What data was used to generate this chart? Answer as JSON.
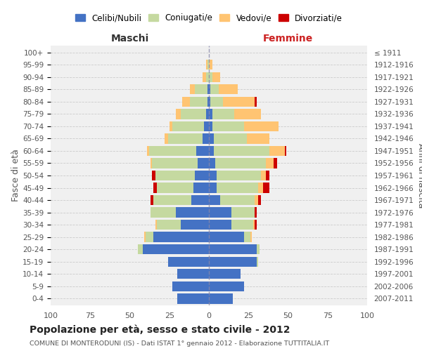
{
  "age_groups": [
    "0-4",
    "5-9",
    "10-14",
    "15-19",
    "20-24",
    "25-29",
    "30-34",
    "35-39",
    "40-44",
    "45-49",
    "50-54",
    "55-59",
    "60-64",
    "65-69",
    "70-74",
    "75-79",
    "80-84",
    "85-89",
    "90-94",
    "95-99",
    "100+"
  ],
  "birth_years": [
    "2007-2011",
    "2002-2006",
    "1997-2001",
    "1992-1996",
    "1987-1991",
    "1982-1986",
    "1977-1981",
    "1972-1976",
    "1967-1971",
    "1962-1966",
    "1957-1961",
    "1952-1956",
    "1947-1951",
    "1942-1946",
    "1937-1941",
    "1932-1936",
    "1927-1931",
    "1922-1926",
    "1917-1921",
    "1912-1916",
    "≤ 1911"
  ],
  "maschi": {
    "celibi": [
      20,
      23,
      20,
      26,
      42,
      35,
      18,
      21,
      11,
      10,
      9,
      7,
      8,
      4,
      3,
      2,
      1,
      1,
      0,
      0,
      0
    ],
    "coniugati": [
      0,
      0,
      0,
      0,
      3,
      5,
      15,
      16,
      24,
      23,
      25,
      29,
      30,
      22,
      20,
      16,
      11,
      8,
      2,
      1,
      0
    ],
    "vedovi": [
      0,
      0,
      0,
      0,
      0,
      1,
      1,
      0,
      0,
      0,
      0,
      1,
      1,
      2,
      2,
      3,
      5,
      3,
      2,
      1,
      0
    ],
    "divorziati": [
      0,
      0,
      0,
      0,
      0,
      0,
      0,
      0,
      2,
      2,
      2,
      0,
      0,
      0,
      0,
      0,
      0,
      0,
      0,
      0,
      0
    ]
  },
  "femmine": {
    "nubili": [
      15,
      22,
      20,
      30,
      30,
      22,
      14,
      14,
      7,
      5,
      5,
      4,
      3,
      3,
      2,
      2,
      1,
      1,
      0,
      0,
      0
    ],
    "coniugate": [
      0,
      0,
      0,
      1,
      2,
      4,
      14,
      15,
      22,
      26,
      28,
      32,
      35,
      21,
      20,
      14,
      8,
      5,
      2,
      0,
      0
    ],
    "vedove": [
      0,
      0,
      0,
      0,
      0,
      1,
      1,
      0,
      2,
      3,
      3,
      5,
      10,
      14,
      22,
      17,
      20,
      12,
      5,
      2,
      0
    ],
    "divorziate": [
      0,
      0,
      0,
      0,
      0,
      0,
      1,
      1,
      2,
      4,
      2,
      2,
      1,
      0,
      0,
      0,
      1,
      0,
      0,
      0,
      0
    ]
  },
  "colors": {
    "celibi": "#4472c4",
    "coniugati": "#c5d9a0",
    "vedovi": "#ffc472",
    "divorziati": "#cc0000"
  },
  "xlim": 100,
  "title": "Popolazione per età, sesso e stato civile - 2012",
  "subtitle": "COMUNE DI MONTERODUNI (IS) - Dati ISTAT 1° gennaio 2012 - Elaborazione TUTTITALIA.IT",
  "ylabel_left": "Fasce di età",
  "ylabel_right": "Anni di nascita",
  "xlabel_left": "Maschi",
  "xlabel_right": "Femmine",
  "legend_labels": [
    "Celibi/Nubili",
    "Coniugati/e",
    "Vedovi/e",
    "Divorziati/e"
  ],
  "bg_color": "#f0f0f0",
  "grid_color": "#cccccc"
}
